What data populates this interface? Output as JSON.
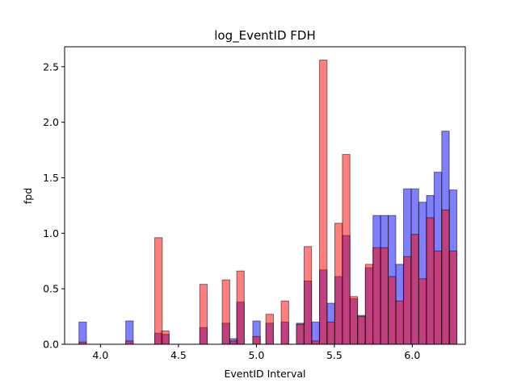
{
  "chart_data": {
    "type": "bar",
    "title": "log_EventID  FDH",
    "xlabel": "EventID Interval",
    "ylabel": "fpd",
    "xlim": [
      3.77,
      6.34
    ],
    "ylim": [
      0,
      2.68
    ],
    "xticks": [
      {
        "value": 4.0,
        "label": "4.0"
      },
      {
        "value": 4.5,
        "label": "4.5"
      },
      {
        "value": 5.0,
        "label": "5.0"
      },
      {
        "value": 5.5,
        "label": "5.5"
      },
      {
        "value": 6.0,
        "label": "6.0"
      }
    ],
    "yticks": [
      {
        "value": 0.0,
        "label": "0.0"
      },
      {
        "value": 0.5,
        "label": "0.5"
      },
      {
        "value": 1.0,
        "label": "1.0"
      },
      {
        "value": 1.5,
        "label": "1.5"
      },
      {
        "value": 2.0,
        "label": "2.0"
      },
      {
        "value": 2.5,
        "label": "2.5"
      }
    ],
    "grid": false,
    "bin_width": 0.048,
    "series": [
      {
        "color": "#0000ff",
        "opacity": 0.5,
        "bins": [
          {
            "x": 3.886,
            "y": 0.2
          },
          {
            "x": 4.186,
            "y": 0.21
          },
          {
            "x": 4.372,
            "y": 0.1
          },
          {
            "x": 4.416,
            "y": 0.09
          },
          {
            "x": 4.661,
            "y": 0.15
          },
          {
            "x": 4.805,
            "y": 0.19
          },
          {
            "x": 4.854,
            "y": 0.05
          },
          {
            "x": 4.898,
            "y": 0.38
          },
          {
            "x": 5.001,
            "y": 0.21
          },
          {
            "x": 5.085,
            "y": 0.19
          },
          {
            "x": 5.183,
            "y": 0.2
          },
          {
            "x": 5.281,
            "y": 0.19
          },
          {
            "x": 5.33,
            "y": 0.57
          },
          {
            "x": 5.38,
            "y": 0.2
          },
          {
            "x": 5.429,
            "y": 0.67
          },
          {
            "x": 5.478,
            "y": 0.37
          },
          {
            "x": 5.527,
            "y": 0.61
          },
          {
            "x": 5.576,
            "y": 0.98
          },
          {
            "x": 5.625,
            "y": 0.41
          },
          {
            "x": 5.674,
            "y": 0.26
          },
          {
            "x": 5.723,
            "y": 0.69
          },
          {
            "x": 5.772,
            "y": 1.16
          },
          {
            "x": 5.821,
            "y": 1.16
          },
          {
            "x": 5.87,
            "y": 1.16
          },
          {
            "x": 5.919,
            "y": 0.72
          },
          {
            "x": 5.968,
            "y": 1.4
          },
          {
            "x": 6.017,
            "y": 1.4
          },
          {
            "x": 6.066,
            "y": 1.28
          },
          {
            "x": 6.115,
            "y": 1.34
          },
          {
            "x": 6.164,
            "y": 1.55
          },
          {
            "x": 6.213,
            "y": 1.92
          },
          {
            "x": 6.262,
            "y": 1.39
          }
        ]
      },
      {
        "color": "#ff0000",
        "opacity": 0.5,
        "bins": [
          {
            "x": 3.886,
            "y": 0.02
          },
          {
            "x": 4.186,
            "y": 0.03
          },
          {
            "x": 4.372,
            "y": 0.96
          },
          {
            "x": 4.416,
            "y": 0.12
          },
          {
            "x": 4.661,
            "y": 0.54
          },
          {
            "x": 4.805,
            "y": 0.58
          },
          {
            "x": 4.854,
            "y": 0.03
          },
          {
            "x": 4.898,
            "y": 0.66
          },
          {
            "x": 5.001,
            "y": 0.07
          },
          {
            "x": 5.085,
            "y": 0.27
          },
          {
            "x": 5.183,
            "y": 0.39
          },
          {
            "x": 5.281,
            "y": 0.18
          },
          {
            "x": 5.33,
            "y": 0.88
          },
          {
            "x": 5.38,
            "y": 0.03
          },
          {
            "x": 5.429,
            "y": 2.56
          },
          {
            "x": 5.478,
            "y": 0.2
          },
          {
            "x": 5.527,
            "y": 1.09
          },
          {
            "x": 5.576,
            "y": 1.71
          },
          {
            "x": 5.625,
            "y": 0.43
          },
          {
            "x": 5.674,
            "y": 0.25
          },
          {
            "x": 5.723,
            "y": 0.72
          },
          {
            "x": 5.772,
            "y": 0.87
          },
          {
            "x": 5.821,
            "y": 0.87
          },
          {
            "x": 5.87,
            "y": 0.61
          },
          {
            "x": 5.919,
            "y": 0.39
          },
          {
            "x": 5.968,
            "y": 0.79
          },
          {
            "x": 6.017,
            "y": 0.99
          },
          {
            "x": 6.066,
            "y": 0.59
          },
          {
            "x": 6.115,
            "y": 1.14
          },
          {
            "x": 6.164,
            "y": 0.84
          },
          {
            "x": 6.213,
            "y": 1.21
          },
          {
            "x": 6.262,
            "y": 0.84
          }
        ]
      }
    ]
  }
}
